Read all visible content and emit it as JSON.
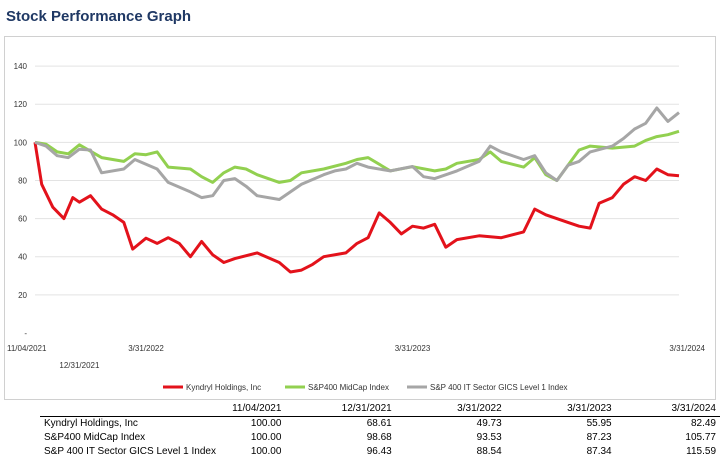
{
  "page": {
    "title": "Stock Performance Graph"
  },
  "chart_data": {
    "type": "line",
    "title": "Stock Performance Graph",
    "xlabel": "",
    "ylabel": "",
    "ylim": [
      0,
      150
    ],
    "yticks": [
      140,
      120,
      100,
      80,
      60,
      40,
      20
    ],
    "y_zero_label": "-",
    "grid": true,
    "legend_position": "bottom",
    "x_axis_labels": [
      {
        "label": "11/04/2021",
        "x": 0,
        "row": 1
      },
      {
        "label": "12/31/2021",
        "x": 2,
        "row": 2
      },
      {
        "label": "3/31/2022",
        "x": 5,
        "row": 1
      },
      {
        "label": "3/31/2023",
        "x": 17,
        "row": 1
      },
      {
        "label": "3/31/2024",
        "x": 29,
        "row": 1
      }
    ],
    "x_range": [
      0,
      29
    ],
    "series": [
      {
        "name": "Kyndryl Holdings, Inc",
        "color": "#e3121b",
        "points": [
          [
            0,
            100
          ],
          [
            0.3,
            78
          ],
          [
            0.8,
            66
          ],
          [
            1.3,
            60
          ],
          [
            1.7,
            71
          ],
          [
            2,
            68.6
          ],
          [
            2.5,
            72
          ],
          [
            3,
            65
          ],
          [
            3.5,
            62
          ],
          [
            4,
            58
          ],
          [
            4.4,
            44
          ],
          [
            5,
            49.7
          ],
          [
            5.5,
            47
          ],
          [
            6,
            50
          ],
          [
            6.5,
            47
          ],
          [
            7,
            40
          ],
          [
            7.5,
            48
          ],
          [
            8,
            41
          ],
          [
            8.5,
            37
          ],
          [
            9,
            39
          ],
          [
            10,
            42
          ],
          [
            11,
            37
          ],
          [
            11.5,
            32
          ],
          [
            12,
            33
          ],
          [
            12.5,
            36
          ],
          [
            13,
            40
          ],
          [
            14,
            42
          ],
          [
            14.5,
            47
          ],
          [
            15,
            50
          ],
          [
            15.5,
            63
          ],
          [
            16,
            58
          ],
          [
            16.5,
            52
          ],
          [
            17,
            56
          ],
          [
            17.5,
            55
          ],
          [
            18,
            57
          ],
          [
            18.5,
            45
          ],
          [
            19,
            49
          ],
          [
            20,
            51
          ],
          [
            21,
            50
          ],
          [
            22,
            53
          ],
          [
            22.5,
            65
          ],
          [
            23,
            62
          ],
          [
            24,
            58
          ],
          [
            24.5,
            56
          ],
          [
            25,
            55
          ],
          [
            25.4,
            68
          ],
          [
            26,
            71
          ],
          [
            26.5,
            78
          ],
          [
            27,
            82
          ],
          [
            27.5,
            80
          ],
          [
            28,
            86
          ],
          [
            28.5,
            83
          ],
          [
            29,
            82.5
          ]
        ]
      },
      {
        "name": "S&P400 MidCap Index",
        "color": "#92d050",
        "points": [
          [
            0,
            100
          ],
          [
            0.5,
            99
          ],
          [
            1,
            95
          ],
          [
            1.5,
            94
          ],
          [
            2,
            98.7
          ],
          [
            3,
            92
          ],
          [
            4,
            90
          ],
          [
            4.5,
            94
          ],
          [
            5,
            93.5
          ],
          [
            5.5,
            95
          ],
          [
            6,
            87
          ],
          [
            7,
            86
          ],
          [
            7.5,
            82
          ],
          [
            8,
            79
          ],
          [
            8.5,
            84
          ],
          [
            9,
            87
          ],
          [
            9.5,
            86
          ],
          [
            10,
            83
          ],
          [
            11,
            79
          ],
          [
            11.5,
            80
          ],
          [
            12,
            84
          ],
          [
            13,
            86
          ],
          [
            14,
            89
          ],
          [
            14.5,
            91
          ],
          [
            15,
            92
          ],
          [
            16,
            85
          ],
          [
            17,
            87.2
          ],
          [
            18,
            85
          ],
          [
            18.5,
            86
          ],
          [
            19,
            89
          ],
          [
            20,
            91
          ],
          [
            20.5,
            95
          ],
          [
            21,
            90
          ],
          [
            22,
            87
          ],
          [
            22.5,
            92
          ],
          [
            23,
            83
          ],
          [
            23.5,
            80
          ],
          [
            24,
            88
          ],
          [
            24.5,
            96
          ],
          [
            25,
            98
          ],
          [
            26,
            97
          ],
          [
            27,
            98
          ],
          [
            27.5,
            101
          ],
          [
            28,
            103
          ],
          [
            28.5,
            104
          ],
          [
            29,
            105.8
          ]
        ]
      },
      {
        "name": "S&P 400 IT Sector GICS Level 1 Index",
        "color": "#a6a6a6",
        "points": [
          [
            0,
            100
          ],
          [
            0.5,
            98
          ],
          [
            1,
            93
          ],
          [
            1.5,
            92
          ],
          [
            2,
            96.4
          ],
          [
            2.5,
            96
          ],
          [
            3,
            84
          ],
          [
            4,
            86
          ],
          [
            4.5,
            91
          ],
          [
            5,
            88.5
          ],
          [
            5.5,
            86
          ],
          [
            6,
            79
          ],
          [
            7,
            74
          ],
          [
            7.5,
            71
          ],
          [
            8,
            72
          ],
          [
            8.5,
            80
          ],
          [
            9,
            81
          ],
          [
            9.5,
            77
          ],
          [
            10,
            72
          ],
          [
            11,
            70
          ],
          [
            11.5,
            74
          ],
          [
            12,
            78
          ],
          [
            13,
            83
          ],
          [
            13.5,
            85
          ],
          [
            14,
            86
          ],
          [
            14.5,
            89
          ],
          [
            15,
            87
          ],
          [
            16,
            85
          ],
          [
            17,
            87.3
          ],
          [
            17.5,
            82
          ],
          [
            18,
            81
          ],
          [
            19,
            85
          ],
          [
            20,
            90
          ],
          [
            20.5,
            98
          ],
          [
            21,
            95
          ],
          [
            22,
            91
          ],
          [
            22.5,
            93
          ],
          [
            23,
            84
          ],
          [
            23.5,
            80
          ],
          [
            24,
            88
          ],
          [
            24.5,
            90
          ],
          [
            25,
            95
          ],
          [
            26,
            98
          ],
          [
            26.5,
            102
          ],
          [
            27,
            107
          ],
          [
            27.5,
            110
          ],
          [
            28,
            118
          ],
          [
            28.5,
            111
          ],
          [
            29,
            115.6
          ]
        ]
      }
    ]
  },
  "table": {
    "headers": [
      "",
      "11/04/2021",
      "12/31/2021",
      "3/31/2022",
      "3/31/2023",
      "3/31/2024"
    ],
    "rows": [
      [
        "Kyndryl Holdings, Inc",
        "100.00",
        "68.61",
        "49.73",
        "55.95",
        "82.49"
      ],
      [
        "S&P400 MidCap Index",
        "100.00",
        "98.68",
        "93.53",
        "87.23",
        "105.77"
      ],
      [
        "S&P 400 IT Sector GICS Level 1 Index",
        "100.00",
        "96.43",
        "88.54",
        "87.34",
        "115.59"
      ]
    ]
  }
}
